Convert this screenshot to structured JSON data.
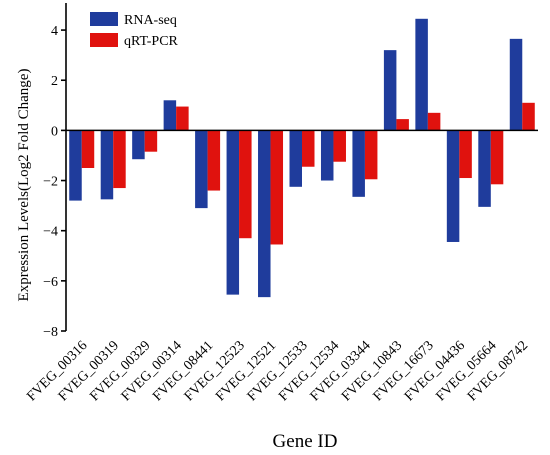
{
  "chart_data": {
    "type": "bar",
    "title": "",
    "xlabel": "Gene ID",
    "ylabel": "Expression Levels(Log2 Fold Change)",
    "ylim": [
      -8,
      5
    ],
    "yticks": [
      -8,
      -6,
      -4,
      -2,
      0,
      2,
      4
    ],
    "grid": false,
    "legend_position": "top-left",
    "categories": [
      "FVEG_00316",
      "FVEG_00319",
      "FVEG_00329",
      "FVEG_00314",
      "FVEG_08441",
      "FVEG_12523",
      "FVEG_12521",
      "FVEG_12533",
      "FVEG_12534",
      "FVEG_03344",
      "FVEG_10843",
      "FVEG_16673",
      "FVEG_04436",
      "FVEG_05664",
      "FVEG_08742"
    ],
    "series": [
      {
        "name": "RNA-seq",
        "color": "#1f3c9c",
        "values": [
          -2.8,
          -2.75,
          -1.15,
          1.2,
          -3.1,
          -6.55,
          -6.65,
          -2.25,
          -2.0,
          -2.65,
          3.2,
          4.45,
          -4.45,
          -3.05,
          3.65
        ]
      },
      {
        "name": "qRT-PCR",
        "color": "#e0120e",
        "values": [
          -1.5,
          -2.3,
          -0.85,
          0.95,
          -2.4,
          -4.3,
          -4.55,
          -1.45,
          -1.25,
          -1.95,
          0.45,
          0.7,
          -1.9,
          -2.15,
          1.1
        ]
      }
    ]
  }
}
